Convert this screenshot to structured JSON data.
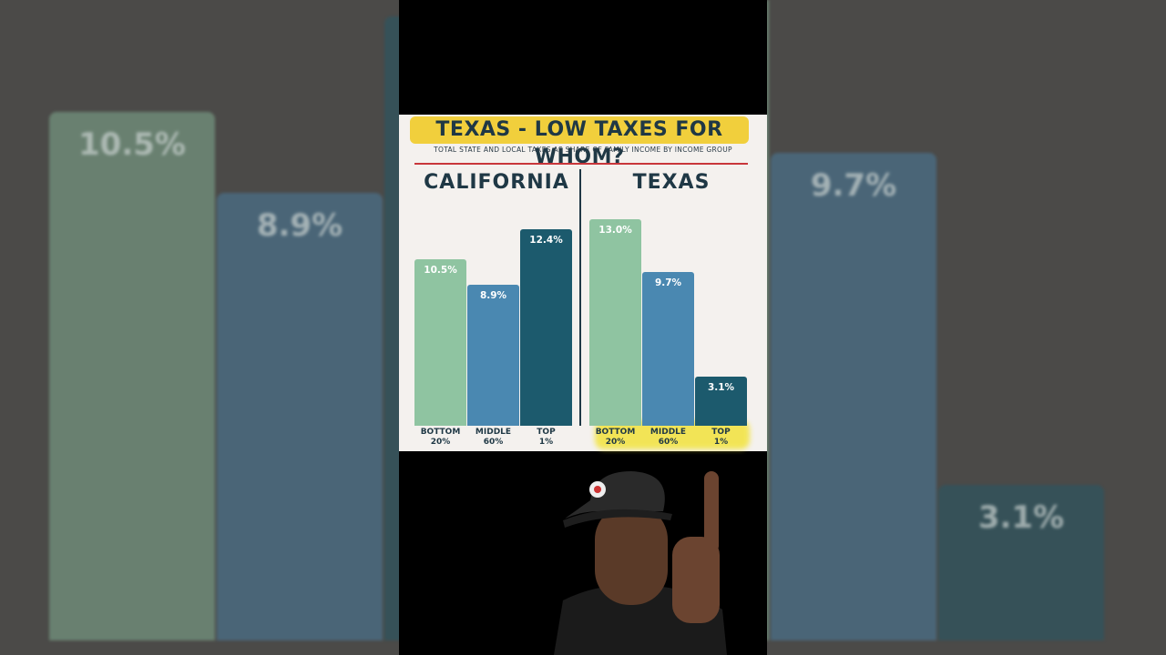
{
  "header": {
    "title": "TEXAS - LOW TAXES FOR WHOM?",
    "subtitle": "TOTAL STATE AND LOCAL TAXES AS SHARE OF FAMILY INCOME BY INCOME GROUP"
  },
  "chart_data": [
    {
      "type": "bar",
      "title": "CALIFORNIA",
      "categories": [
        "BOTTOM 20%",
        "MIDDLE 60%",
        "TOP 1%"
      ],
      "values": [
        10.5,
        8.9,
        12.4
      ],
      "value_labels": [
        "10.5%",
        "8.9%",
        "12.4%"
      ],
      "colors": [
        "#8fc4a1",
        "#4a88b1",
        "#1c5a6d"
      ]
    },
    {
      "type": "bar",
      "title": "TEXAS",
      "categories": [
        "BOTTOM 20%",
        "MIDDLE 60%",
        "TOP 1%"
      ],
      "values": [
        13.0,
        9.7,
        3.1
      ],
      "value_labels": [
        "13.0%",
        "9.7%",
        "3.1%"
      ],
      "colors": [
        "#8fc4a1",
        "#4a88b1",
        "#1c5a6d"
      ]
    }
  ]
}
